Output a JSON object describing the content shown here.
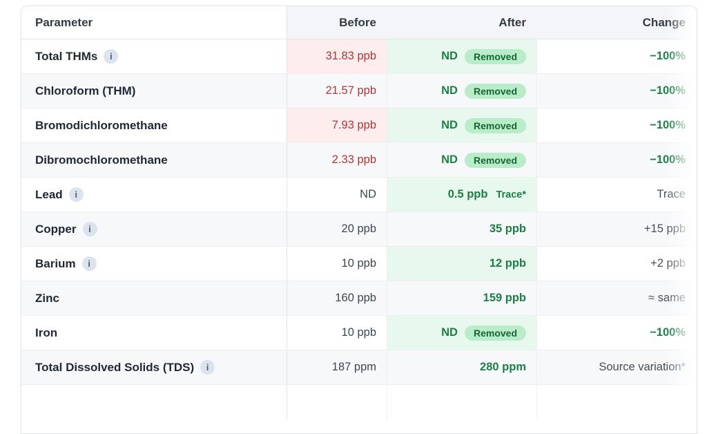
{
  "header": {
    "parameter": "Parameter",
    "before": "Before",
    "after": "After",
    "change": "Change"
  },
  "icons": {
    "info": "i"
  },
  "colors": {
    "bad_text": "#b33434",
    "bad_bg": "#fdeeed",
    "good_text": "#1a8044",
    "good_bg": "#e9f8ef",
    "pill_bg": "#b9edc9",
    "pill_text": "#166534",
    "stripe_bg": "#f7f8fa",
    "header_bg": "#f3f5f8",
    "border": "#e2e6ea"
  },
  "rows": [
    {
      "param": "Total THMs",
      "info": "true",
      "before": {
        "text": "31.83 ppb",
        "variant": "bad-tint"
      },
      "after": {
        "value": "ND",
        "badge": "Removed",
        "badge_variant": "pill",
        "variant": "good-tint"
      },
      "change": {
        "text": "−100%",
        "variant": "good"
      }
    },
    {
      "param": "Chloroform (THM)",
      "info": "false",
      "before": {
        "text": "21.57 ppb",
        "variant": "bad"
      },
      "after": {
        "value": "ND",
        "badge": "Removed",
        "badge_variant": "pill",
        "variant": "plain"
      },
      "change": {
        "text": "−100%",
        "variant": "good"
      }
    },
    {
      "param": "Bromodichloromethane",
      "info": "false",
      "before": {
        "text": "7.93 ppb",
        "variant": "bad-tint"
      },
      "after": {
        "value": "ND",
        "badge": "Removed",
        "badge_variant": "pill",
        "variant": "good-tint"
      },
      "change": {
        "text": "−100%",
        "variant": "good"
      }
    },
    {
      "param": "Dibromochloromethane",
      "info": "false",
      "before": {
        "text": "2.33 ppb",
        "variant": "bad"
      },
      "after": {
        "value": "ND",
        "badge": "Removed",
        "badge_variant": "pill",
        "variant": "plain"
      },
      "change": {
        "text": "−100%",
        "variant": "good"
      }
    },
    {
      "param": "Lead",
      "info": "true",
      "before": {
        "text": "ND",
        "variant": "plain"
      },
      "after": {
        "value": "0.5 ppb",
        "badge": "Trace*",
        "badge_variant": "text",
        "variant": "good-tint"
      },
      "change": {
        "text": "Trace",
        "variant": "neutral"
      }
    },
    {
      "param": "Copper",
      "info": "true",
      "before": {
        "text": "20 ppb",
        "variant": "plain"
      },
      "after": {
        "value": "35 ppb",
        "variant": "plain"
      },
      "change": {
        "text": "+15 ppb",
        "variant": "neutral"
      }
    },
    {
      "param": "Barium",
      "info": "true",
      "before": {
        "text": "10 ppb",
        "variant": "plain"
      },
      "after": {
        "value": "12 ppb",
        "variant": "good-tint"
      },
      "change": {
        "text": "+2 ppb",
        "variant": "neutral"
      }
    },
    {
      "param": "Zinc",
      "info": "false",
      "before": {
        "text": "160 ppb",
        "variant": "plain"
      },
      "after": {
        "value": "159 ppb",
        "variant": "plain"
      },
      "change": {
        "text": "≈ same",
        "variant": "neutral"
      }
    },
    {
      "param": "Iron",
      "info": "false",
      "before": {
        "text": "10 ppb",
        "variant": "plain"
      },
      "after": {
        "value": "ND",
        "badge": "Removed",
        "badge_variant": "pill",
        "variant": "good-tint"
      },
      "change": {
        "text": "−100%",
        "variant": "good"
      }
    },
    {
      "param": "Total Dissolved Solids (TDS)",
      "info": "true",
      "before": {
        "text": "187 ppm",
        "variant": "plain"
      },
      "after": {
        "value": "280 ppm",
        "variant": "plain"
      },
      "change": {
        "text": "Source variation*",
        "variant": "neutral"
      }
    }
  ]
}
